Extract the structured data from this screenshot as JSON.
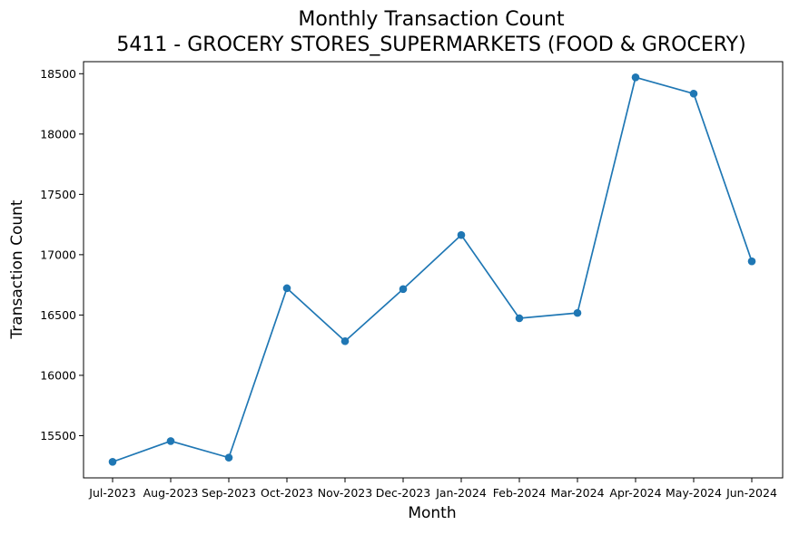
{
  "chart_data": {
    "type": "line",
    "title": "Monthly Transaction Count",
    "subtitle": "5411 - GROCERY STORES_SUPERMARKETS (FOOD & GROCERY)",
    "xlabel": "Month",
    "ylabel": "Transaction Count",
    "categories": [
      "Jul-2023",
      "Aug-2023",
      "Sep-2023",
      "Oct-2023",
      "Nov-2023",
      "Dec-2023",
      "Jan-2024",
      "Feb-2024",
      "Mar-2024",
      "Apr-2024",
      "May-2024",
      "Jun-2024"
    ],
    "series": [
      {
        "values": [
          15283,
          15455,
          15318,
          16722,
          16283,
          16715,
          17163,
          16473,
          16517,
          18470,
          18335,
          16945
        ],
        "color": "#1f77b4",
        "marker": "circle"
      }
    ],
    "y_ticks": [
      15500,
      16000,
      16500,
      17000,
      17500,
      18000,
      18500
    ],
    "ylim": [
      15150,
      18600
    ],
    "grid": false,
    "legend": "none"
  }
}
